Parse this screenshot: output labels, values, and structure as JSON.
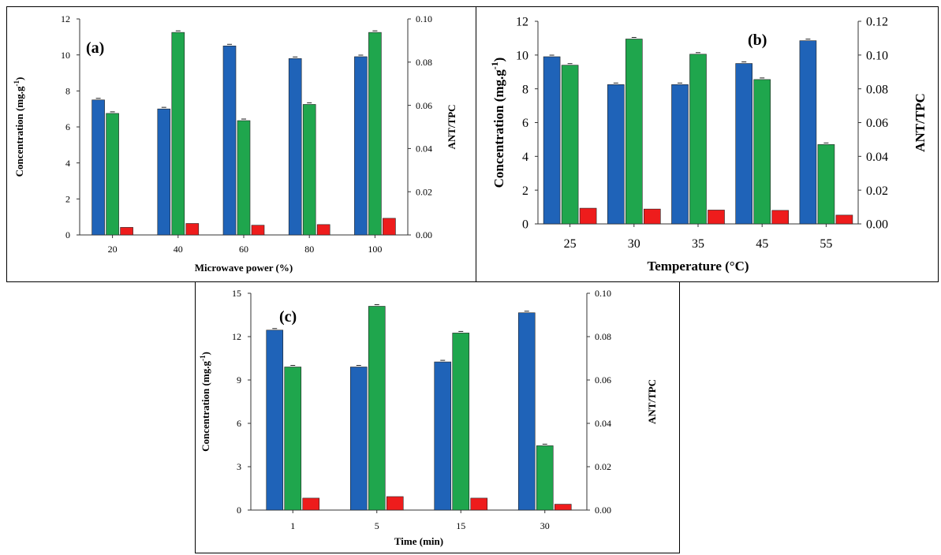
{
  "colors": {
    "blue": "#1f63b8",
    "green": "#1fa64d",
    "red": "#ee1c1c",
    "axis": "#333333"
  },
  "chart_data": [
    {
      "type": "bar",
      "panel_label": "(a)",
      "xlabel": "Microwave power (%)",
      "ylabel": "Concentration (mg.g",
      "ylabel_sup": "-1",
      "ylabel_close": ")",
      "y2label": "ANT/TPC",
      "categories": [
        "20",
        "40",
        "60",
        "80",
        "100"
      ],
      "ylim": [
        0,
        12
      ],
      "yticks": [
        "0",
        "2",
        "4",
        "6",
        "8",
        "10",
        "12"
      ],
      "y2lim": [
        0,
        0.1
      ],
      "y2ticks": [
        "0.00",
        "0.02",
        "0.04",
        "0.06",
        "0.08",
        "0.10"
      ],
      "series": [
        {
          "color": "blue",
          "axis": "left",
          "values": [
            7.5,
            7.0,
            10.5,
            9.8,
            9.9
          ]
        },
        {
          "color": "green",
          "axis": "left",
          "values": [
            6.75,
            11.25,
            6.35,
            7.25,
            11.25
          ]
        },
        {
          "color": "red",
          "axis": "right",
          "values": [
            0.0035,
            0.0053,
            0.0045,
            0.0048,
            0.0077
          ]
        }
      ],
      "grid": false
    },
    {
      "type": "bar",
      "panel_label": "(b)",
      "xlabel": "Temperature (°C)",
      "ylabel": "Concentration (mg.g",
      "ylabel_sup": "-1",
      "ylabel_close": ")",
      "y2label": "ANT/TPC",
      "categories": [
        "25",
        "30",
        "35",
        "45",
        "55"
      ],
      "ylim": [
        0,
        12
      ],
      "yticks": [
        "0",
        "2",
        "4",
        "6",
        "8",
        "10",
        "12"
      ],
      "y2lim": [
        0,
        0.12
      ],
      "y2ticks": [
        "0.00",
        "0.02",
        "0.04",
        "0.06",
        "0.08",
        "0.10",
        "0.12"
      ],
      "series": [
        {
          "color": "blue",
          "axis": "left",
          "values": [
            9.9,
            8.25,
            8.25,
            9.5,
            10.85
          ]
        },
        {
          "color": "green",
          "axis": "left",
          "values": [
            9.4,
            10.95,
            10.05,
            8.55,
            4.7
          ]
        },
        {
          "color": "red",
          "axis": "right",
          "values": [
            0.0093,
            0.0088,
            0.0082,
            0.008,
            0.0052
          ]
        }
      ],
      "grid": false
    },
    {
      "type": "bar",
      "panel_label": "(c)",
      "xlabel": "Time (min)",
      "ylabel": "Concentration (mg.g",
      "ylabel_sup": "-1",
      "ylabel_close": ")",
      "y2label": "ANT/TPC",
      "categories": [
        "1",
        "5",
        "15",
        "30"
      ],
      "ylim": [
        0,
        15
      ],
      "yticks": [
        "0",
        "3",
        "6",
        "9",
        "12",
        "15"
      ],
      "y2lim": [
        0,
        0.1
      ],
      "y2ticks": [
        "0.00",
        "0.02",
        "0.04",
        "0.06",
        "0.08",
        "0.10"
      ],
      "series": [
        {
          "color": "blue",
          "axis": "left",
          "values": [
            12.45,
            9.9,
            10.25,
            13.65
          ]
        },
        {
          "color": "green",
          "axis": "left",
          "values": [
            9.9,
            14.1,
            12.25,
            4.45
          ]
        },
        {
          "color": "red",
          "axis": "right",
          "values": [
            0.0055,
            0.0062,
            0.0055,
            0.0027
          ]
        }
      ],
      "grid": false
    }
  ]
}
